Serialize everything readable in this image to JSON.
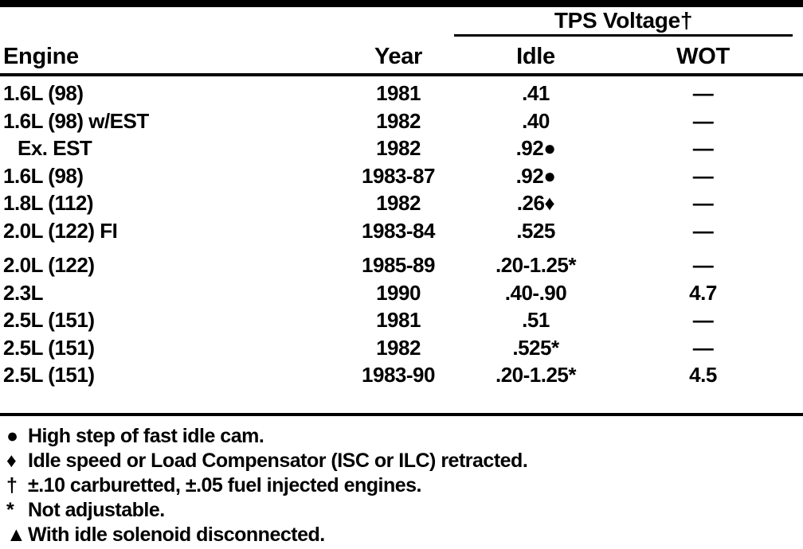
{
  "colors": {
    "ink": "#000000",
    "paper": "#ffffff"
  },
  "table": {
    "group_header": "TPS Voltage†",
    "columns": {
      "engine": "Engine",
      "year": "Year",
      "idle": "Idle",
      "wot": "WOT"
    },
    "rows": [
      {
        "engine": "1.6L (98)",
        "year": "1981",
        "idle": ".41",
        "wot": "—"
      },
      {
        "engine": "1.6L (98) w/EST",
        "year": "1982",
        "idle": ".40",
        "wot": "—"
      },
      {
        "engine": "Ex. EST",
        "year": "1982",
        "idle": ".92●",
        "wot": "—"
      },
      {
        "engine": "1.6L (98)",
        "year": "1983-87",
        "idle": ".92●",
        "wot": "—"
      },
      {
        "engine": "1.8L (112)",
        "year": "1982",
        "idle": ".26♦",
        "wot": "—"
      },
      {
        "engine": "2.0L (122) FI",
        "year": "1983-84",
        "idle": ".525",
        "wot": "—"
      },
      {
        "engine": "2.0L (122)",
        "year": "1985-89",
        "idle": ".20-1.25*",
        "wot": "—"
      },
      {
        "engine": "2.3L",
        "year": "1990",
        "idle": ".40-.90",
        "wot": "4.7"
      },
      {
        "engine": "2.5L (151)",
        "year": "1981",
        "idle": ".51",
        "wot": "—"
      },
      {
        "engine": "2.5L (151)",
        "year": "1982",
        "idle": ".525*",
        "wot": "—"
      },
      {
        "engine": "2.5L (151)",
        "year": "1983-90",
        "idle": ".20-1.25*",
        "wot": "4.5"
      }
    ]
  },
  "footnotes": [
    {
      "symbol": "●",
      "text": "High step of fast idle cam."
    },
    {
      "symbol": "♦",
      "text": "Idle speed or Load Compensator (ISC or ILC) retracted."
    },
    {
      "symbol": "†",
      "text": "±.10 carburetted, ±.05 fuel injected engines."
    },
    {
      "symbol": "*",
      "text": "Not adjustable."
    },
    {
      "symbol": "▲",
      "text": "With idle solenoid disconnected."
    }
  ]
}
